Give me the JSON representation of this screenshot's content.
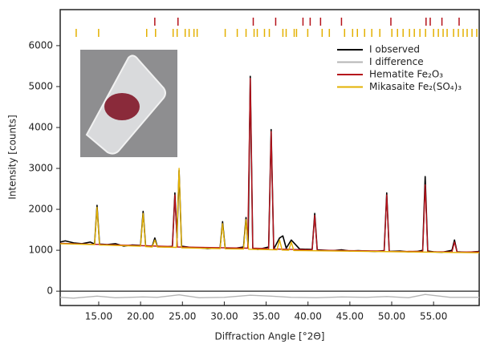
{
  "chart_data": {
    "type": "line",
    "xlabel": "Diffraction Angle [°2Θ]",
    "ylabel": "Intensity [counts]",
    "xlim": [
      10.4,
      60.45
    ],
    "ylim": [
      -350,
      6880
    ],
    "xticks": [
      {
        "value": 15,
        "label": "15.00"
      },
      {
        "value": 20,
        "label": "20.00"
      },
      {
        "value": 25,
        "label": "25.00"
      },
      {
        "value": 30,
        "label": "30.00"
      },
      {
        "value": 35,
        "label": "35.00"
      },
      {
        "value": 40,
        "label": "40.00"
      },
      {
        "value": 45,
        "label": "45.00"
      },
      {
        "value": 50,
        "label": "50.00"
      },
      {
        "value": 55,
        "label": "55.00"
      }
    ],
    "yticks": [
      0,
      1000,
      2000,
      3000,
      4000,
      5000,
      6000
    ],
    "legend": "upper right",
    "series": [
      {
        "name": "I observed",
        "color": "#000000",
        "x": [
          10.4,
          11,
          12,
          13,
          14,
          14.5,
          14.8,
          15.1,
          16,
          17,
          18,
          19,
          20,
          20.3,
          20.6,
          21.4,
          21.7,
          22,
          23,
          23.8,
          24.1,
          24.35,
          24.6,
          24.9,
          26,
          27,
          28,
          29.5,
          29.8,
          30.1,
          31,
          32.3,
          32.6,
          32.85,
          33.1,
          33.4,
          34,
          35.3,
          35.6,
          35.9,
          36.6,
          37,
          37.4,
          38,
          39,
          40.5,
          40.8,
          41.1,
          42,
          43,
          44,
          45,
          46,
          47,
          48,
          49.1,
          49.4,
          49.7,
          51,
          52,
          53,
          53.7,
          54,
          54.3,
          55,
          56,
          57.2,
          57.5,
          57.8,
          59,
          60.45
        ],
        "values": [
          1200,
          1230,
          1180,
          1160,
          1200,
          1150,
          2100,
          1150,
          1140,
          1160,
          1100,
          1130,
          1120,
          1950,
          1110,
          1100,
          1300,
          1090,
          1080,
          1100,
          2400,
          1300,
          2950,
          1100,
          1070,
          1060,
          1040,
          1060,
          1700,
          1050,
          1040,
          1080,
          1800,
          1100,
          5250,
          1050,
          1020,
          1080,
          3950,
          1030,
          1300,
          1350,
          1050,
          1250,
          1030,
          1020,
          1900,
          1010,
          1000,
          990,
          1010,
          980,
          990,
          980,
          970,
          990,
          2400,
          970,
          980,
          960,
          970,
          1000,
          2800,
          980,
          960,
          950,
          1000,
          1250,
          960,
          950,
          970
        ]
      },
      {
        "name": "I difference",
        "color": "#b5b5b5",
        "x": [
          10.4,
          12,
          14.8,
          17,
          20.3,
          22,
          24.6,
          27,
          30,
          33.1,
          35.6,
          38,
          41,
          44,
          47,
          49.4,
          52,
          54,
          57,
          60.45
        ],
        "values": [
          -150,
          -170,
          -120,
          -160,
          -140,
          -150,
          -90,
          -160,
          -150,
          -100,
          -120,
          -150,
          -160,
          -140,
          -150,
          -130,
          -160,
          -80,
          -150,
          -150
        ]
      },
      {
        "name": "Hematite Fe₂O₃",
        "color": "#b5121b",
        "x": [
          10.4,
          23.8,
          24.1,
          24.4,
          32.8,
          33.1,
          33.4,
          35.3,
          35.6,
          35.9,
          40.5,
          40.8,
          41.1,
          49.1,
          49.4,
          49.7,
          53.7,
          54,
          54.3,
          57.2,
          57.5,
          57.8,
          60.45
        ],
        "values": [
          1170,
          1090,
          2350,
          1080,
          1050,
          5200,
          1050,
          1040,
          3900,
          1030,
          1010,
          1850,
          1000,
          980,
          2350,
          975,
          970,
          2600,
          965,
          960,
          1200,
          955,
          960
        ],
        "reflections": [
          21.7,
          24.47,
          33.46,
          36.14,
          39.4,
          40.26,
          41.5,
          44.0,
          49.9,
          54.1,
          54.6,
          56.0,
          58.05
        ]
      },
      {
        "name": "Mikasaite Fe₂(SO₄)₃",
        "color": "#e3b000",
        "x": [
          10.4,
          14.5,
          14.8,
          15.1,
          20,
          20.3,
          20.6,
          21.4,
          21.7,
          22,
          24.3,
          24.6,
          24.9,
          29.5,
          29.8,
          30.1,
          32.3,
          32.6,
          32.9,
          36.3,
          36.6,
          36.9,
          37.7,
          38,
          38.3,
          60.45
        ],
        "values": [
          1160,
          1140,
          2050,
          1130,
          1100,
          1900,
          1090,
          1080,
          1250,
          1080,
          1070,
          3000,
          1060,
          1040,
          1650,
          1035,
          1030,
          1750,
          1025,
          1010,
          1250,
          1005,
          1000,
          1200,
          995,
          940
        ],
        "reflections": [
          12.31,
          14.99,
          20.73,
          21.79,
          23.89,
          24.37,
          25.33,
          25.8,
          26.38,
          26.76,
          30.11,
          31.55,
          32.6,
          33.56,
          33.94,
          34.8,
          35.38,
          37.0,
          37.39,
          38.35,
          38.63,
          39.97,
          41.69,
          42.55,
          44.37,
          45.33,
          45.9,
          46.76,
          47.62,
          48.58,
          50.02,
          50.69,
          51.36,
          52.12,
          52.7,
          53.37,
          54.04,
          55.0,
          55.57,
          56.14,
          56.62,
          57.39,
          57.96,
          58.53,
          59.01,
          59.59,
          60.16
        ]
      }
    ]
  }
}
